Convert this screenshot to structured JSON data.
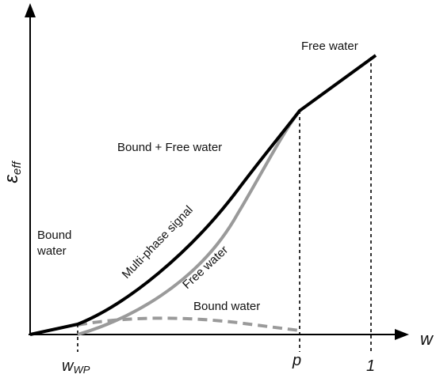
{
  "axes": {
    "y_symbol": "ε",
    "y_subscript": "eff",
    "x_symbol": "w"
  },
  "ticks": {
    "wp_main": "w",
    "wp_sub": "WP",
    "porosity": "p",
    "one": "1"
  },
  "labels": {
    "free_water_top": "Free water",
    "bound_plus_free": "Bound + Free water",
    "bound_water_left_line1": "Bound",
    "bound_water_left_line2": "water",
    "multiphase": "Multi-phase signal",
    "free_water_curve": "Free water",
    "bound_water_curve": "Bound water"
  },
  "colors": {
    "multiphase_curve": "#000000",
    "free_water_curve": "#9a9a9a",
    "bound_water_curve": "#9a9a9a",
    "axes": "#000000"
  }
}
